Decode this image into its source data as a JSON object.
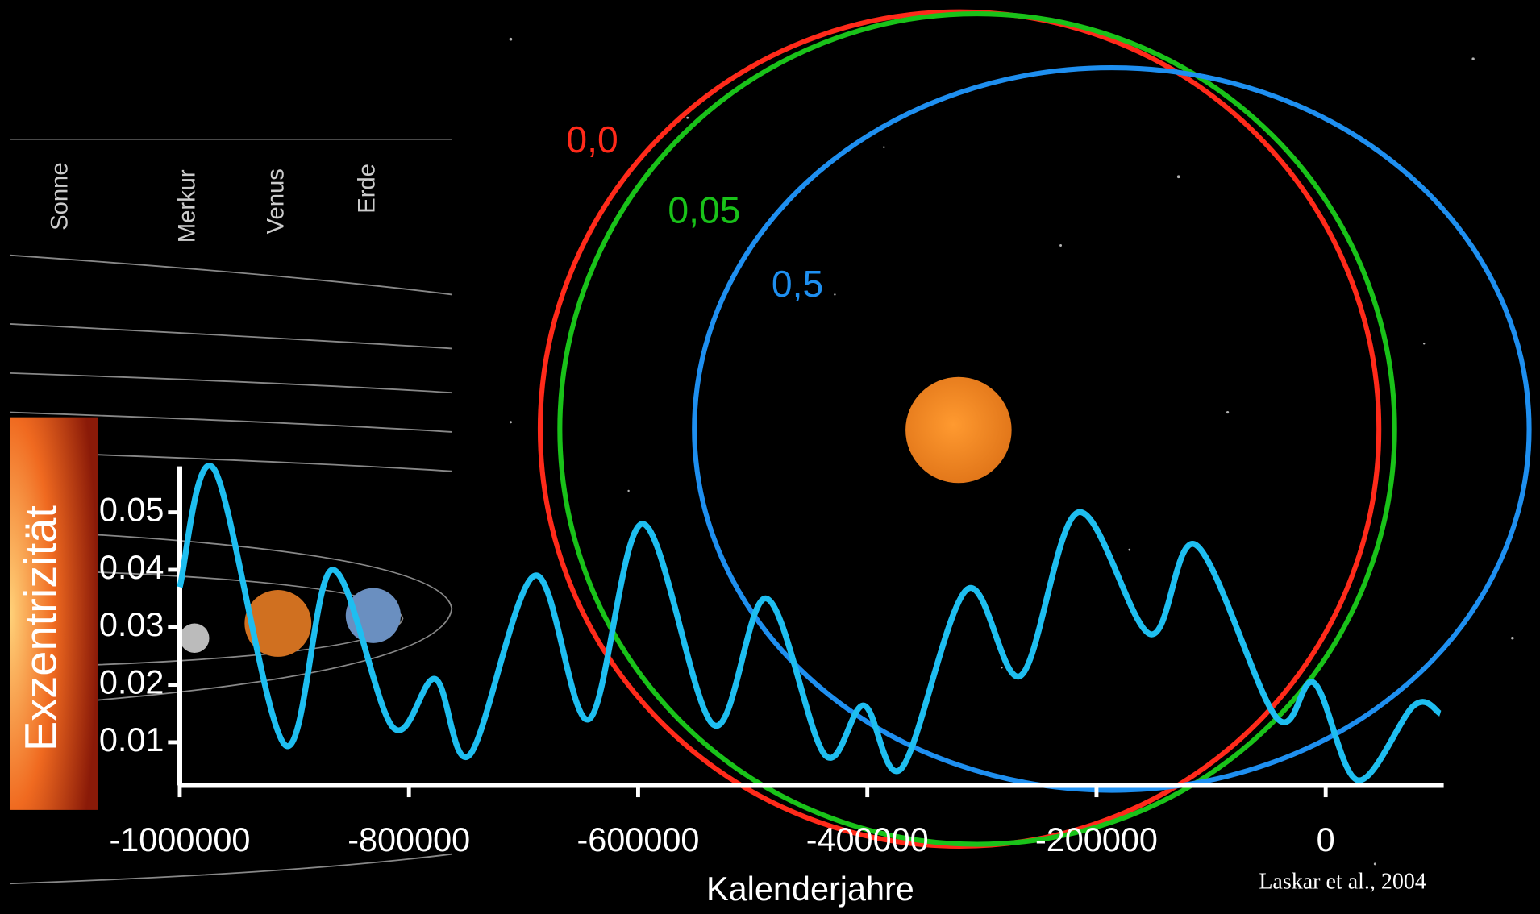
{
  "chart_data": {
    "type": "line",
    "y_label": "Exzentrizität",
    "x_label": "Kalenderjahre",
    "source": "Laskar et al., 2004",
    "orbit_labels": [
      {
        "text": "0,0",
        "color": "#ff2a1a"
      },
      {
        "text": "0,05",
        "color": "#19c219"
      },
      {
        "text": "0,5",
        "color": "#1e8ff0"
      }
    ],
    "illustration_labels": [
      "Sonne",
      "Merkur",
      "Venus",
      "Erde"
    ],
    "x": [
      -1000000,
      -970000,
      -908000,
      -867000,
      -814000,
      -777000,
      -747000,
      -690000,
      -643000,
      -596000,
      -534000,
      -488000,
      -437000,
      -403000,
      -370000,
      -313000,
      -266000,
      -216000,
      -153000,
      -113000,
      -43000,
      -10000,
      28000,
      77000,
      100000
    ],
    "values": [
      0.037,
      0.0575,
      0.0095,
      0.04,
      0.0126,
      0.021,
      0.0078,
      0.039,
      0.014,
      0.048,
      0.013,
      0.035,
      0.0078,
      0.0164,
      0.0055,
      0.0366,
      0.0216,
      0.05,
      0.0288,
      0.0443,
      0.0143,
      0.0203,
      0.0034,
      0.0164,
      0.015
    ],
    "color": "#1ebef0",
    "xlim": [
      -1000000,
      103000
    ],
    "ylim": [
      0.0025,
      0.058
    ],
    "xticks": [
      -1000000,
      -800000,
      -600000,
      -400000,
      -200000,
      0
    ],
    "yticks": [
      0.01,
      0.02,
      0.03,
      0.04,
      0.05
    ]
  }
}
